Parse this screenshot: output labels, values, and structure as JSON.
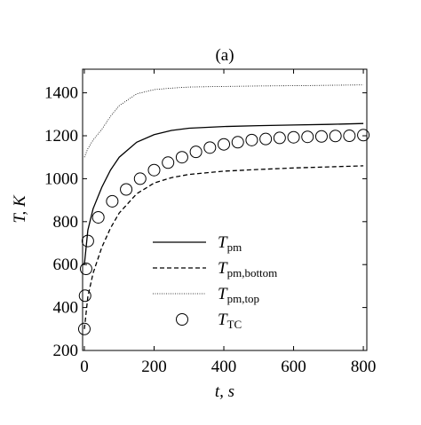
{
  "chart_data": {
    "type": "line",
    "title": "(a)",
    "xlabel": "t, s",
    "ylabel": "T, K",
    "xlim": [
      -5,
      810
    ],
    "ylim": [
      200,
      1510
    ],
    "xticks": [
      0,
      200,
      400,
      600,
      800
    ],
    "yticks": [
      200,
      400,
      600,
      800,
      1000,
      1200,
      1400
    ],
    "legend": "lower center",
    "series": [
      {
        "name": "T_pm",
        "color": "#000000",
        "style": "solid",
        "x": [
          0,
          10,
          25,
          50,
          75,
          100,
          150,
          200,
          250,
          300,
          400,
          500,
          600,
          700,
          800
        ],
        "values": [
          600,
          760,
          860,
          960,
          1040,
          1100,
          1170,
          1205,
          1225,
          1235,
          1243,
          1247,
          1250,
          1253,
          1257
        ]
      },
      {
        "name": "T_pm,bottom",
        "color": "#000000",
        "style": "dashed",
        "x": [
          0,
          10,
          25,
          50,
          75,
          100,
          150,
          200,
          250,
          300,
          400,
          500,
          600,
          700,
          800
        ],
        "values": [
          300,
          450,
          560,
          680,
          770,
          840,
          930,
          980,
          1005,
          1020,
          1035,
          1043,
          1050,
          1055,
          1060
        ]
      },
      {
        "name": "T_pm,top",
        "color": "#000000",
        "style": "dotted",
        "x": [
          0,
          10,
          25,
          50,
          75,
          100,
          150,
          200,
          250,
          300,
          400,
          500,
          600,
          700,
          800
        ],
        "values": [
          1100,
          1140,
          1180,
          1230,
          1290,
          1340,
          1395,
          1415,
          1422,
          1427,
          1430,
          1432,
          1433,
          1435,
          1437
        ]
      },
      {
        "name": "T_TC",
        "color": "#000000",
        "style": "circles",
        "x": [
          0,
          2,
          5,
          10,
          40,
          80,
          120,
          160,
          200,
          240,
          280,
          320,
          360,
          400,
          440,
          480,
          520,
          560,
          600,
          640,
          680,
          720,
          760,
          800
        ],
        "values": [
          300,
          455,
          580,
          710,
          820,
          895,
          950,
          1000,
          1040,
          1075,
          1100,
          1125,
          1145,
          1160,
          1170,
          1180,
          1185,
          1190,
          1193,
          1195,
          1197,
          1199,
          1200,
          1203
        ]
      }
    ]
  }
}
